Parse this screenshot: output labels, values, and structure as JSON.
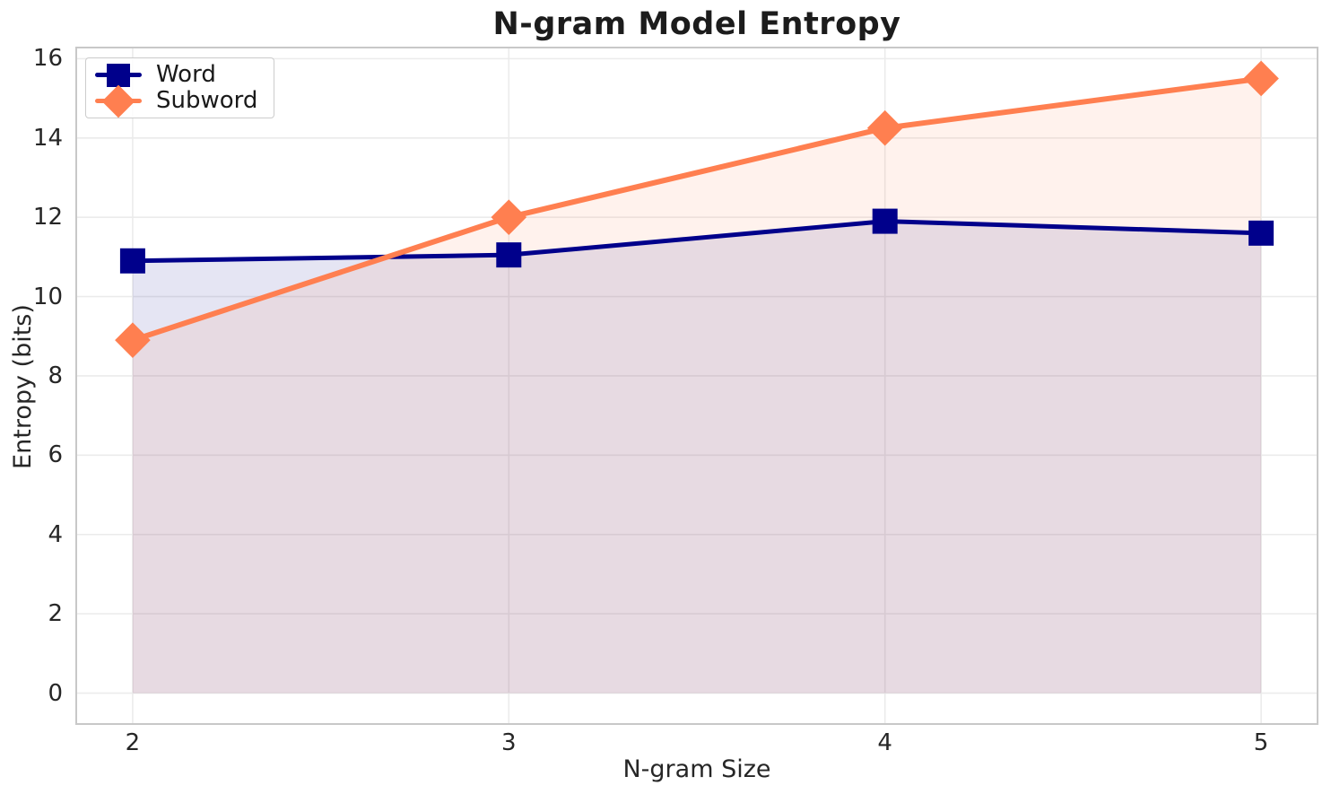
{
  "chart_data": {
    "type": "line",
    "title": "N-gram Model Entropy",
    "xlabel": "N-gram Size",
    "ylabel": "Entropy (bits)",
    "x": [
      2,
      3,
      4,
      5
    ],
    "series": [
      {
        "name": "Word",
        "values": [
          10.9,
          11.05,
          11.9,
          11.6
        ],
        "color": "#00008B",
        "marker": "square",
        "line_width": 5,
        "marker_size": 28
      },
      {
        "name": "Subword",
        "values": [
          8.9,
          12.0,
          14.25,
          15.5
        ],
        "color": "#FF7F50",
        "marker": "diamond",
        "line_width": 6,
        "marker_size": 28
      }
    ],
    "xticks": [
      "2",
      "3",
      "4",
      "5"
    ],
    "xtick_values": [
      2,
      3,
      4,
      5
    ],
    "yticks": [
      "0",
      "2",
      "4",
      "6",
      "8",
      "10",
      "12",
      "14",
      "16"
    ],
    "ytick_values": [
      0,
      2,
      4,
      6,
      8,
      10,
      12,
      14,
      16
    ],
    "xlim": [
      1.85,
      5.15
    ],
    "ylim": [
      -0.78,
      16.28
    ],
    "grid": true,
    "legend_position": "upper left",
    "fill_to_zero": true,
    "fill_alpha": 0.1
  },
  "style": {
    "grid_color": "#EBEBEB",
    "spine_color": "#C8C8C8",
    "text_color": "#262626",
    "title_color": "#1C1C1C",
    "legend_border_color": "#CCCCCC",
    "background": "#FFFFFF"
  }
}
